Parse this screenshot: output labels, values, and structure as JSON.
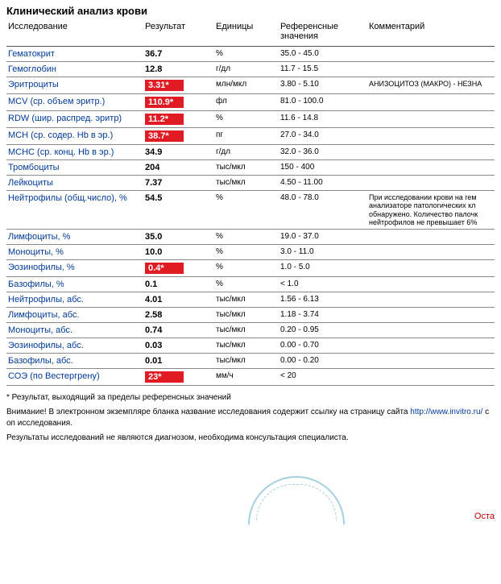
{
  "title": "Клинический анализ крови",
  "columns": {
    "test": "Исследование",
    "result": "Результат",
    "units": "Единицы",
    "ref": "Референсные значения",
    "comment": "Комментарий"
  },
  "rows": [
    {
      "test": "Гематокрит",
      "result": "36.7",
      "flag": false,
      "units": "%",
      "ref": "35.0 - 45.0",
      "comment": ""
    },
    {
      "test": "Гемоглобин",
      "result": "12.8",
      "flag": false,
      "units": "г/дл",
      "ref": "11.7 - 15.5",
      "comment": ""
    },
    {
      "test": "Эритроциты",
      "result": "3.31*",
      "flag": true,
      "units": "млн/мкл",
      "ref": "3.80 - 5.10",
      "comment": "АНИЗОЦИТОЗ (МАКРО) - НЕЗНА"
    },
    {
      "test": "MCV (ср. объем эритр.)",
      "result": "110.9*",
      "flag": true,
      "units": "фл",
      "ref": "81.0 - 100.0",
      "comment": ""
    },
    {
      "test": "RDW (шир. распред. эритр)",
      "result": "11.2*",
      "flag": true,
      "units": "%",
      "ref": "11.6 - 14.8",
      "comment": ""
    },
    {
      "test": "MCH (ср. содер. Hb в эр.)",
      "result": "38.7*",
      "flag": true,
      "units": "пг",
      "ref": "27.0 - 34.0",
      "comment": ""
    },
    {
      "test": "MCHC (ср. конц. Hb в эр.)",
      "result": "34.9",
      "flag": false,
      "units": "г/дл",
      "ref": "32.0 - 36.0",
      "comment": ""
    },
    {
      "test": "Тромбоциты",
      "result": "204",
      "flag": false,
      "units": "тыс/мкл",
      "ref": "150 - 400",
      "comment": ""
    },
    {
      "test": "Лейкоциты",
      "result": "7.37",
      "flag": false,
      "units": "тыс/мкл",
      "ref": "4.50 - 11.00",
      "comment": ""
    },
    {
      "test": "Нейтрофилы (общ.число), %",
      "result": "54.5",
      "flag": false,
      "units": "%",
      "ref": "48.0 - 78.0",
      "comment": "При исследовании крови на гем анализаторе патологических кл обнаружено. Количество палочк нейтрофилов не превышает 6%"
    },
    {
      "test": "Лимфоциты, %",
      "result": "35.0",
      "flag": false,
      "units": "%",
      "ref": "19.0 - 37.0",
      "comment": ""
    },
    {
      "test": "Моноциты, %",
      "result": "10.0",
      "flag": false,
      "units": "%",
      "ref": "3.0 - 11.0",
      "comment": ""
    },
    {
      "test": "Эозинофилы, %",
      "result": "0.4*",
      "flag": true,
      "units": "%",
      "ref": "1.0 - 5.0",
      "comment": ""
    },
    {
      "test": "Базофилы, %",
      "result": "0.1",
      "flag": false,
      "units": "%",
      "ref": "< 1.0",
      "comment": ""
    },
    {
      "test": "Нейтрофилы, абс.",
      "result": "4.01",
      "flag": false,
      "units": "тыс/мкл",
      "ref": "1.56 - 6.13",
      "comment": ""
    },
    {
      "test": "Лимфоциты, абс.",
      "result": "2.58",
      "flag": false,
      "units": "тыс/мкл",
      "ref": "1.18 - 3.74",
      "comment": ""
    },
    {
      "test": "Моноциты, абс.",
      "result": "0.74",
      "flag": false,
      "units": "тыс/мкл",
      "ref": "0.20 - 0.95",
      "comment": ""
    },
    {
      "test": "Эозинофилы, абс.",
      "result": "0.03",
      "flag": false,
      "units": "тыс/мкл",
      "ref": "0.00 - 0.70",
      "comment": ""
    },
    {
      "test": "Базофилы, абс.",
      "result": "0.01",
      "flag": false,
      "units": "тыс/мкл",
      "ref": "0.00 - 0.20",
      "comment": ""
    },
    {
      "test": "СОЭ (по Вестергрену)",
      "result": "23*",
      "flag": true,
      "units": "мм/ч",
      "ref": "< 20",
      "comment": ""
    }
  ],
  "footnotes": {
    "line1": "* Результат, выходящий за пределы референсных значений",
    "line2_a": "Внимание! В электронном экземпляре бланка название исследования содержит ссылку на страницу сайта ",
    "line2_link": "http://www.invitro.ru/",
    "line2_b": " с оп исследования.",
    "line3": "Результаты исследований не являются диагнозом, необходима консультация специалиста."
  },
  "bottom_right": "Оста",
  "colors": {
    "link": "#003b9a",
    "flag_bg": "#e01b24",
    "flag_text": "#ffffff",
    "border": "#888888",
    "stamp": "#5aa8c7",
    "red_text": "#cc0000"
  }
}
